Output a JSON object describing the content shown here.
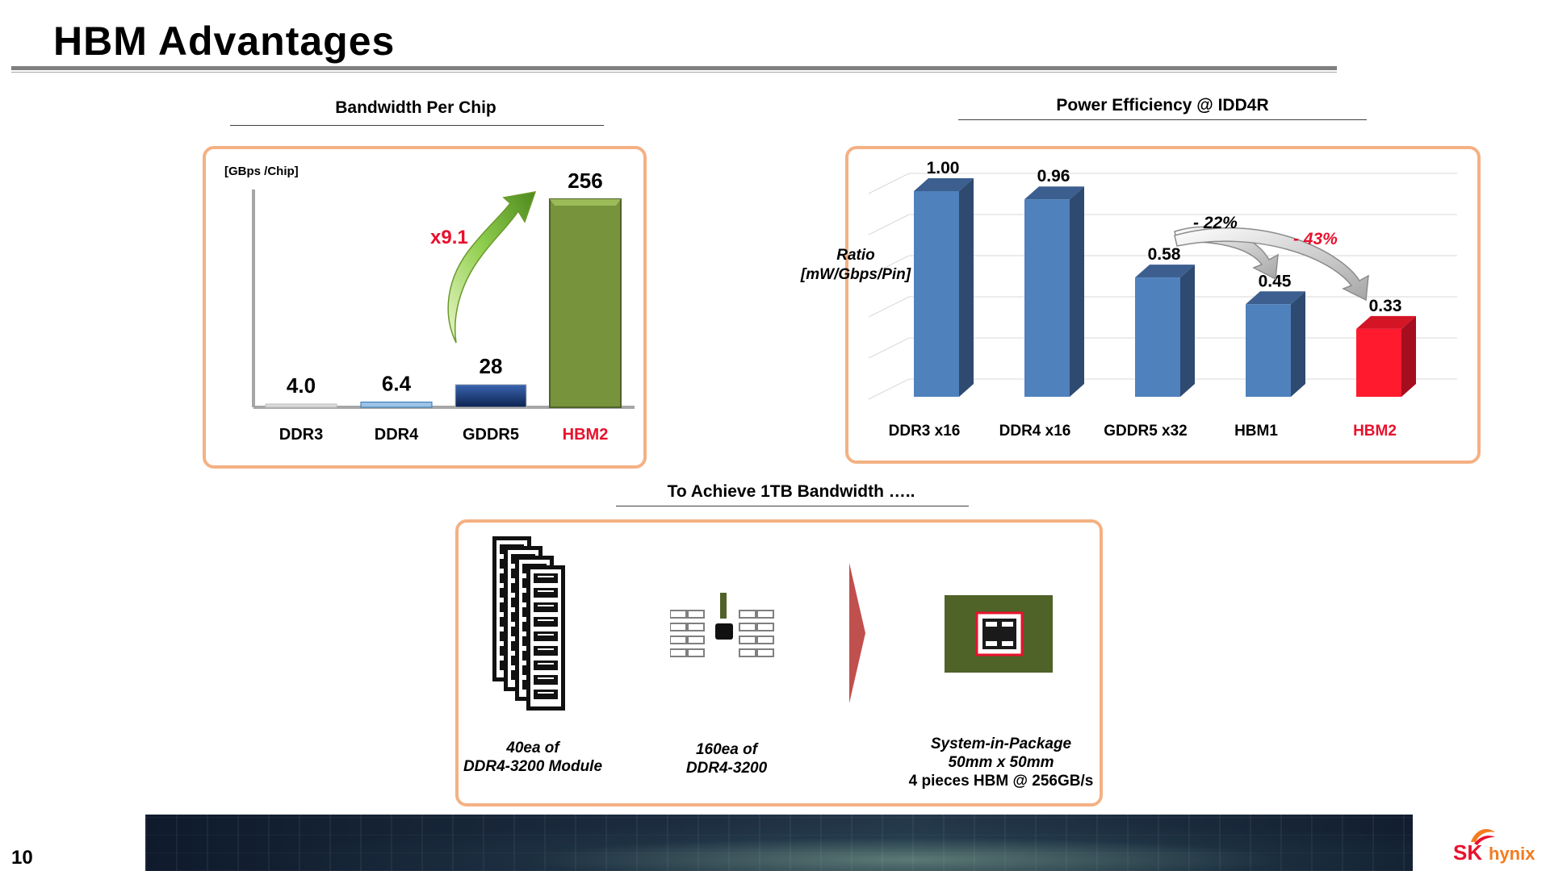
{
  "slide": {
    "title": "HBM Advantages",
    "page_number": "10",
    "logo_sk": "SK",
    "logo_hynix": "hynix"
  },
  "section_titles": {
    "bandwidth": "Bandwidth Per Chip",
    "power": "Power Efficiency @ IDD4R",
    "achieve": "To Achieve 1TB Bandwidth ….."
  },
  "chart_data": [
    {
      "type": "bar",
      "title": "Bandwidth Per Chip",
      "ylabel": "[GBps /Chip]",
      "categories": [
        "DDR3",
        "DDR4",
        "GDDR5",
        "HBM2"
      ],
      "values": [
        4.0,
        6.4,
        28,
        256
      ],
      "value_labels": [
        "4.0",
        "6.4",
        "28",
        "256"
      ],
      "ylim": [
        0,
        256
      ],
      "annotations": [
        "x9.1"
      ],
      "colors": [
        "#d9d9d9",
        "#9dc3e6",
        "#1f3b73",
        "#77933c"
      ],
      "highlight_category": "HBM2",
      "highlight_color": "#e8112d"
    },
    {
      "type": "bar",
      "title": "Power Efficiency @ IDD4R",
      "ylabel": "Ratio\n[mW/Gbps/Pin]",
      "categories": [
        "DDR3 x16",
        "DDR4 x16",
        "GDDR5 x32",
        "HBM1",
        "HBM2"
      ],
      "values": [
        1.0,
        0.96,
        0.58,
        0.45,
        0.33
      ],
      "value_labels": [
        "1.00",
        "0.96",
        "0.58",
        "0.45",
        "0.33"
      ],
      "ylim": [
        0,
        1.2
      ],
      "grid": true,
      "annotations": [
        "- 22%",
        "- 43%"
      ],
      "colors": [
        "#4f81bd",
        "#4f81bd",
        "#4f81bd",
        "#4f81bd",
        "#ff1a2e"
      ],
      "highlight_category": "HBM2",
      "highlight_color": "#e8112d"
    }
  ],
  "achieve": {
    "module_caption_1": "40ea of",
    "module_caption_2": "DDR4-3200 Module",
    "chip_caption_1": "160ea of",
    "chip_caption_2": "DDR4-3200",
    "sip_caption_1": "System-in-Package",
    "sip_caption_2": "50mm x 50mm",
    "sip_caption_3": "4 pieces HBM @ 256GB/s"
  }
}
